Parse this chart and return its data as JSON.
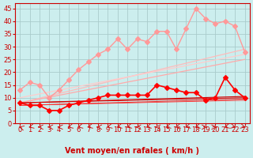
{
  "xlabel": "Vent moyen/en rafales ( km/h )",
  "bg_color": "#cceeee",
  "grid_color": "#aacccc",
  "x_ticks": [
    0,
    1,
    2,
    3,
    4,
    5,
    6,
    7,
    8,
    9,
    10,
    11,
    12,
    13,
    14,
    15,
    16,
    17,
    18,
    19,
    20,
    21,
    22,
    23
  ],
  "y_ticks": [
    0,
    5,
    10,
    15,
    20,
    25,
    30,
    35,
    40,
    45
  ],
  "ylim": [
    0,
    47
  ],
  "xlim": [
    -0.5,
    23.5
  ],
  "straight_lines": [
    {
      "x0": 0,
      "y0": 8,
      "x1": 23,
      "y1": 29,
      "color": "#ffaaaa",
      "lw": 1.0
    },
    {
      "x0": 0,
      "y0": 10,
      "x1": 23,
      "y1": 28,
      "color": "#ffbbbb",
      "lw": 1.0
    },
    {
      "x0": 0,
      "y0": 8,
      "x1": 23,
      "y1": 10,
      "color": "#cc0000",
      "lw": 1.0
    },
    {
      "x0": 0,
      "y0": 8,
      "x1": 23,
      "y1": 10,
      "color": "#dd2222",
      "lw": 0.8
    },
    {
      "x0": 0,
      "y0": 8,
      "x1": 23,
      "y1": 10,
      "color": "#ee3333",
      "lw": 0.7
    },
    {
      "x0": 0,
      "y0": 7,
      "x1": 23,
      "y1": 10,
      "color": "#ff4444",
      "lw": 0.7
    }
  ],
  "series_pink_top": {
    "x": [
      0,
      1,
      2,
      3,
      4,
      5,
      6,
      7,
      8,
      9,
      10,
      11,
      12,
      13,
      14,
      15,
      16,
      17,
      18,
      19,
      20,
      21,
      22,
      23
    ],
    "y": [
      13,
      16,
      15,
      10,
      13,
      17,
      21,
      24,
      27,
      29,
      33,
      29,
      33,
      32,
      36,
      36,
      29,
      37,
      45,
      41,
      39,
      40,
      38,
      28
    ],
    "color": "#ff9999",
    "lw": 1.0,
    "ms": 3.0
  },
  "series_red_mid": {
    "x": [
      0,
      1,
      2,
      3,
      4,
      5,
      6,
      7,
      8,
      9,
      10,
      11,
      12,
      13,
      14,
      15,
      16,
      17,
      18,
      19,
      20,
      21,
      22,
      23
    ],
    "y": [
      8,
      7,
      7,
      5,
      5,
      7,
      8,
      9,
      10,
      11,
      11,
      11,
      11,
      11,
      15,
      14,
      13,
      12,
      12,
      9,
      10,
      18,
      13,
      10
    ],
    "color": "#ff0000",
    "lw": 1.2,
    "ms": 3.0
  },
  "arrows_x": [
    0,
    1,
    2,
    3,
    4,
    5,
    6,
    7,
    8,
    9,
    10,
    11,
    12,
    13,
    14,
    15,
    16,
    17,
    18,
    19,
    20,
    21,
    22,
    23
  ],
  "arrows_angles": [
    225,
    315,
    270,
    270,
    270,
    315,
    315,
    315,
    270,
    315,
    315,
    315,
    270,
    315,
    270,
    315,
    315,
    315,
    315,
    90,
    90,
    315,
    45,
    45
  ],
  "label_fontsize": 7,
  "tick_fontsize": 6
}
